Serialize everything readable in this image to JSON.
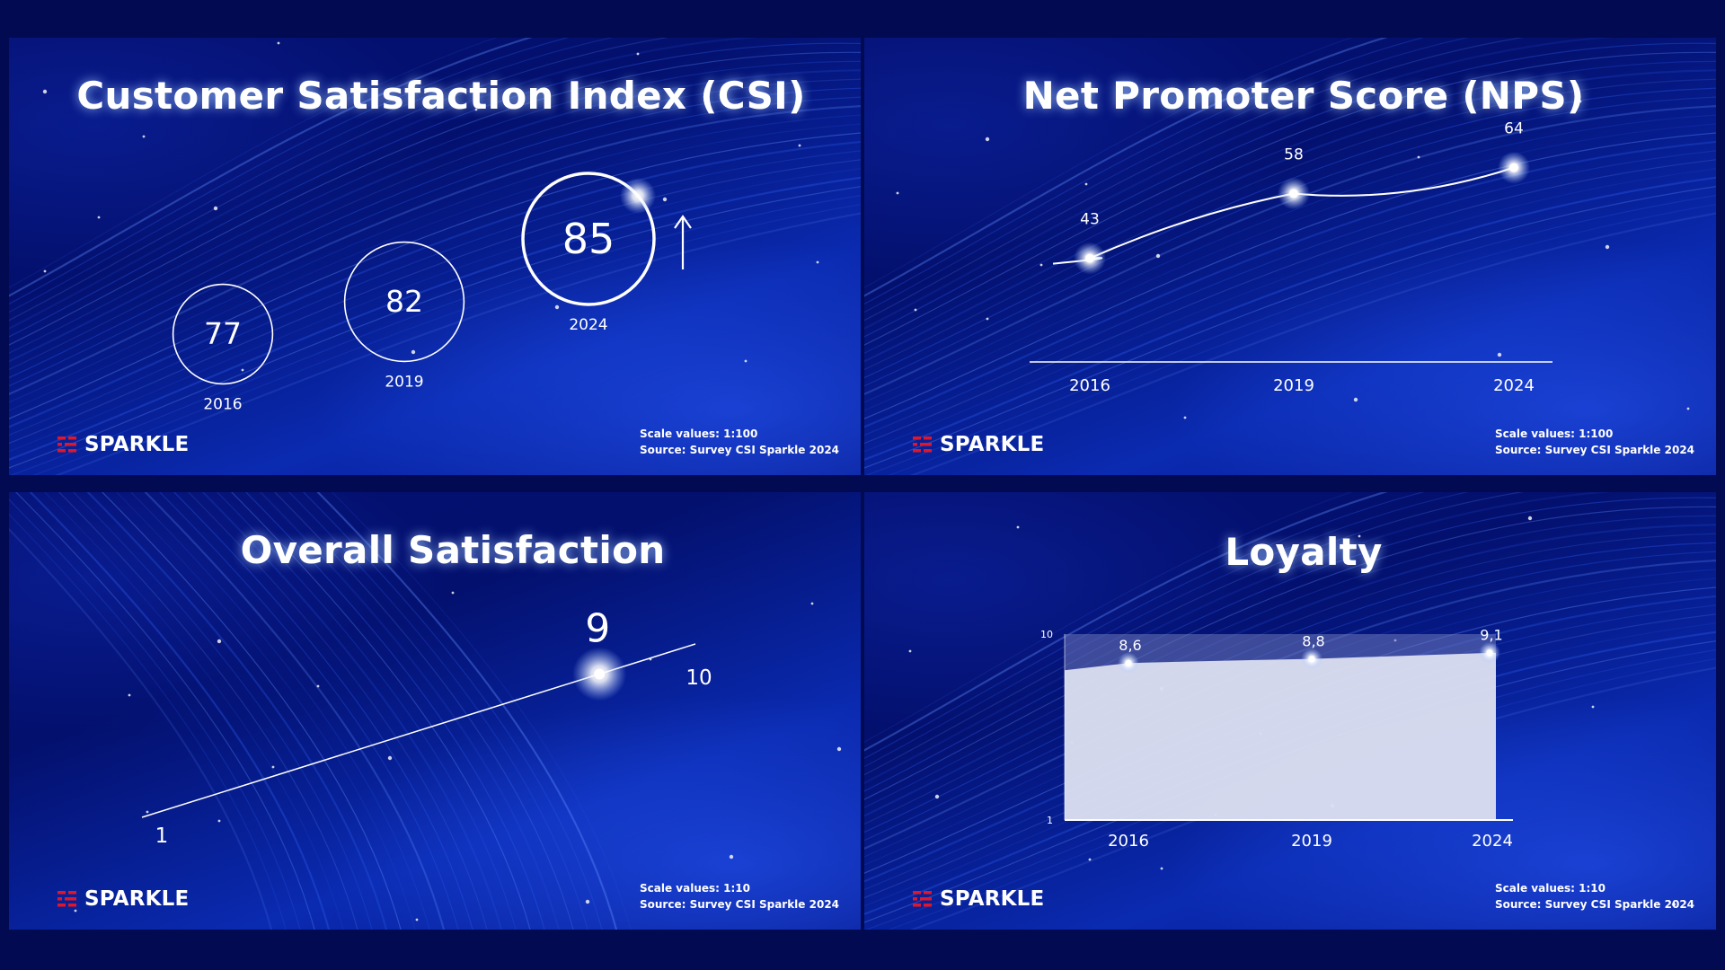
{
  "panels": [
    {
      "title": "Customer Satisfaction Index (CSI)",
      "scale": "Scale values: 1:100",
      "source": "Source: Survey CSI Sparkle 2024",
      "brand": "SPARKLE"
    },
    {
      "title": "Net Promoter Score (NPS)",
      "scale": "Scale values: 1:100",
      "source": "Source: Survey CSI Sparkle 2024",
      "brand": "SPARKLE"
    },
    {
      "title": "Overall Satisfaction",
      "scale": "Scale values: 1:10",
      "source": "Source: Survey CSI Sparkle 2024",
      "brand": "SPARKLE"
    },
    {
      "title": "Loyalty",
      "scale": "Scale values: 1:10",
      "source": "Source: Survey CSI Sparkle 2024",
      "brand": "SPARKLE"
    }
  ],
  "colors": {
    "background": "#020a52",
    "brand_red": "#e0162b",
    "white": "#ffffff",
    "area_fill": "#dfe2f2"
  },
  "icons": {
    "trend": "arrow-up-icon",
    "logo": "sparkle-logo-icon"
  },
  "chart_data": [
    {
      "type": "bubble",
      "title": "Customer Satisfaction Index (CSI)",
      "categories": [
        "2016",
        "2019",
        "2024"
      ],
      "values": [
        77,
        82,
        85
      ],
      "trend": "up",
      "scale": "1:100"
    },
    {
      "type": "line",
      "title": "Net Promoter Score (NPS)",
      "categories": [
        "2016",
        "2019",
        "2024"
      ],
      "values": [
        43,
        58,
        64
      ],
      "scale": "1:100"
    },
    {
      "type": "scale",
      "title": "Overall Satisfaction",
      "min": 1,
      "max": 10,
      "value": 9,
      "min_label": "1",
      "max_label": "10",
      "value_label": "9",
      "scale": "1:10"
    },
    {
      "type": "area",
      "title": "Loyalty",
      "categories": [
        "2016",
        "2019",
        "2024"
      ],
      "values": [
        8.6,
        8.8,
        9.1
      ],
      "value_labels": [
        "8,6",
        "8,8",
        "9,1"
      ],
      "ylim": [
        1,
        10
      ],
      "y_ticks": [
        "1",
        "10"
      ],
      "scale": "1:10"
    }
  ]
}
